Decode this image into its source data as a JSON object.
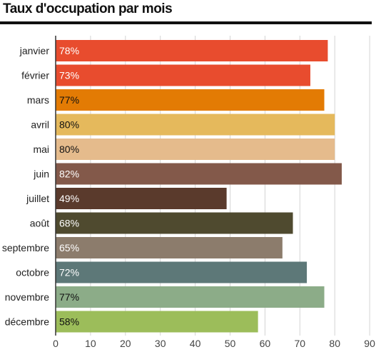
{
  "chart_data": {
    "type": "bar",
    "orientation": "horizontal",
    "title": "Taux d'occupation par mois",
    "categories": [
      "janvier",
      "février",
      "mars",
      "avril",
      "mai",
      "juin",
      "juillet",
      "août",
      "septembre",
      "octobre",
      "novembre",
      "décembre"
    ],
    "values": [
      78,
      73,
      77,
      80,
      80,
      82,
      49,
      68,
      65,
      72,
      77,
      58
    ],
    "data_labels": [
      "78%",
      "73%",
      "77%",
      "80%",
      "80%",
      "82%",
      "49%",
      "68%",
      "65%",
      "72%",
      "77%",
      "58%"
    ],
    "bar_colors": [
      "#e84c2e",
      "#e84c2e",
      "#e37b04",
      "#e5b95c",
      "#e5bb8c",
      "#83594a",
      "#5a3a2c",
      "#4f4a2f",
      "#8c7c6c",
      "#5d7878",
      "#8cac88",
      "#9cbd5a"
    ],
    "label_colors": [
      "#ffffff",
      "#ffffff",
      "#111111",
      "#111111",
      "#111111",
      "#ffffff",
      "#ffffff",
      "#ffffff",
      "#ffffff",
      "#ffffff",
      "#111111",
      "#111111"
    ],
    "x_ticks": [
      0,
      10,
      20,
      30,
      40,
      50,
      60,
      70,
      80,
      90
    ],
    "xlim": [
      0,
      90
    ],
    "grid": true,
    "xlabel": "",
    "ylabel": ""
  }
}
